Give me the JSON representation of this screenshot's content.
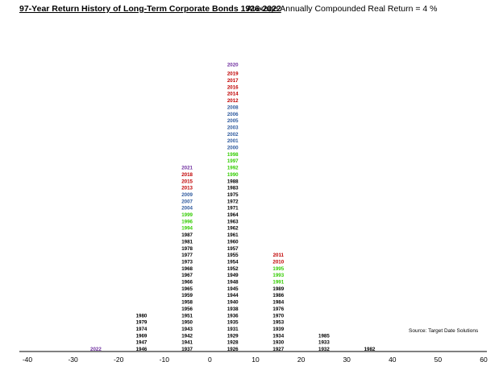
{
  "chart_data": {
    "type": "histogram-stem",
    "title": "97-Year Return History of Long-Term Corporate Bonds 1926-2022",
    "subtitle": "Average Annually Compounded Real Return  =  4 %",
    "source_note": "Source: Target Date Solutions",
    "x_ticks": [
      -40,
      -30,
      -20,
      -10,
      0,
      10,
      20,
      30,
      40,
      50,
      60
    ],
    "xlim": [
      -40,
      60
    ],
    "colors": {
      "black": "#000000",
      "red": "#c00000",
      "blue": "#2e5a9e",
      "green": "#33cc00",
      "purple": "#7030a0"
    },
    "columns": [
      {
        "bin_center": -25,
        "years": [
          {
            "year": "2022",
            "color": "purple",
            "big": true
          }
        ]
      },
      {
        "bin_center": -15,
        "years": [
          {
            "year": "1946",
            "color": "black"
          },
          {
            "year": "1947",
            "color": "black"
          },
          {
            "year": "1969",
            "color": "black"
          },
          {
            "year": "1974",
            "color": "black"
          },
          {
            "year": "1979",
            "color": "black"
          },
          {
            "year": "1980",
            "color": "black"
          }
        ]
      },
      {
        "bin_center": -5,
        "years": [
          {
            "year": "1937",
            "color": "black"
          },
          {
            "year": "1941",
            "color": "black"
          },
          {
            "year": "1942",
            "color": "black"
          },
          {
            "year": "1943",
            "color": "black"
          },
          {
            "year": "1950",
            "color": "black"
          },
          {
            "year": "1951",
            "color": "black"
          },
          {
            "year": "1956",
            "color": "black"
          },
          {
            "year": "1958",
            "color": "black"
          },
          {
            "year": "1959",
            "color": "black"
          },
          {
            "year": "1965",
            "color": "black"
          },
          {
            "year": "1966",
            "color": "black"
          },
          {
            "year": "1967",
            "color": "black"
          },
          {
            "year": "1968",
            "color": "black"
          },
          {
            "year": "1973",
            "color": "black"
          },
          {
            "year": "1977",
            "color": "black"
          },
          {
            "year": "1978",
            "color": "black"
          },
          {
            "year": "1981",
            "color": "black"
          },
          {
            "year": "1987",
            "color": "black"
          },
          {
            "year": "1994",
            "color": "green"
          },
          {
            "year": "1996",
            "color": "green"
          },
          {
            "year": "1999",
            "color": "green"
          },
          {
            "year": "2004",
            "color": "blue"
          },
          {
            "year": "2007",
            "color": "blue"
          },
          {
            "year": "2009",
            "color": "blue"
          },
          {
            "year": "2013",
            "color": "red"
          },
          {
            "year": "2015",
            "color": "red"
          },
          {
            "year": "2018",
            "color": "red"
          },
          {
            "year": "2021",
            "color": "purple",
            "big": true
          }
        ]
      },
      {
        "bin_center": 5,
        "years": [
          {
            "year": "1926",
            "color": "black"
          },
          {
            "year": "1928",
            "color": "black"
          },
          {
            "year": "1929",
            "color": "black"
          },
          {
            "year": "1931",
            "color": "black"
          },
          {
            "year": "1935",
            "color": "black"
          },
          {
            "year": "1936",
            "color": "black"
          },
          {
            "year": "1938",
            "color": "black"
          },
          {
            "year": "1940",
            "color": "black"
          },
          {
            "year": "1944",
            "color": "black"
          },
          {
            "year": "1945",
            "color": "black"
          },
          {
            "year": "1948",
            "color": "black"
          },
          {
            "year": "1949",
            "color": "black"
          },
          {
            "year": "1952",
            "color": "black"
          },
          {
            "year": "1954",
            "color": "black"
          },
          {
            "year": "1955",
            "color": "black"
          },
          {
            "year": "1957",
            "color": "black"
          },
          {
            "year": "1960",
            "color": "black"
          },
          {
            "year": "1961",
            "color": "black"
          },
          {
            "year": "1962",
            "color": "black"
          },
          {
            "year": "1963",
            "color": "black"
          },
          {
            "year": "1964",
            "color": "black"
          },
          {
            "year": "1971",
            "color": "black"
          },
          {
            "year": "1972",
            "color": "black"
          },
          {
            "year": "1975",
            "color": "black"
          },
          {
            "year": "1983",
            "color": "black"
          },
          {
            "year": "1988",
            "color": "black"
          },
          {
            "year": "1990",
            "color": "green"
          },
          {
            "year": "1992",
            "color": "green"
          },
          {
            "year": "1997",
            "color": "green"
          },
          {
            "year": "1998",
            "color": "green"
          },
          {
            "year": "2000",
            "color": "blue"
          },
          {
            "year": "2001",
            "color": "blue"
          },
          {
            "year": "2002",
            "color": "blue"
          },
          {
            "year": "2003",
            "color": "blue"
          },
          {
            "year": "2005",
            "color": "blue"
          },
          {
            "year": "2006",
            "color": "blue"
          },
          {
            "year": "2008",
            "color": "blue"
          },
          {
            "year": "2012",
            "color": "red"
          },
          {
            "year": "2014",
            "color": "red"
          },
          {
            "year": "2016",
            "color": "red"
          },
          {
            "year": "2017",
            "color": "red"
          },
          {
            "year": "2019",
            "color": "red",
            "big": true
          },
          {
            "year": "2020",
            "color": "purple",
            "big": true
          }
        ]
      },
      {
        "bin_center": 15,
        "years": [
          {
            "year": "1927",
            "color": "black"
          },
          {
            "year": "1930",
            "color": "black"
          },
          {
            "year": "1934",
            "color": "black"
          },
          {
            "year": "1939",
            "color": "black"
          },
          {
            "year": "1953",
            "color": "black"
          },
          {
            "year": "1970",
            "color": "black"
          },
          {
            "year": "1976",
            "color": "black"
          },
          {
            "year": "1984",
            "color": "black"
          },
          {
            "year": "1986",
            "color": "black"
          },
          {
            "year": "1989",
            "color": "black"
          },
          {
            "year": "1991",
            "color": "green"
          },
          {
            "year": "1993",
            "color": "green"
          },
          {
            "year": "1995",
            "color": "green"
          },
          {
            "year": "2010",
            "color": "red"
          },
          {
            "year": "2011",
            "color": "red"
          }
        ]
      },
      {
        "bin_center": 25,
        "years": [
          {
            "year": "1932",
            "color": "black"
          },
          {
            "year": "1933",
            "color": "black"
          },
          {
            "year": "1985",
            "color": "black"
          }
        ]
      },
      {
        "bin_center": 35,
        "years": [
          {
            "year": "1982",
            "color": "black"
          }
        ]
      }
    ]
  }
}
